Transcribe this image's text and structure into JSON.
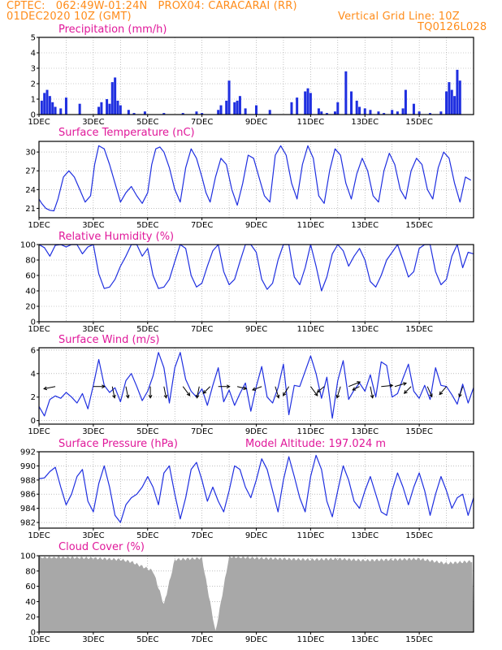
{
  "header": {
    "line1": "CPTEC:   062:49W-01:24N   PROX04: CARACARAI (RR)",
    "line2_left": "01DEC2020 10Z (GMT)",
    "line2_right": "Vertical Grid Line: 10Z",
    "line3_right": "TQ0126L028"
  },
  "colors": {
    "header": "#ff8c1a",
    "title": "#e0189a",
    "series": "#1f2fe0",
    "cloud": "#a8a8a8"
  },
  "x_ticks": [
    "1DEC",
    "3DEC",
    "5DEC",
    "7DEC",
    "9DEC",
    "11DEC",
    "13DEC",
    "15DEC"
  ],
  "chart_data": [
    {
      "type": "bar",
      "title": "Precipitation (mm/h)",
      "ylim": [
        0,
        5
      ],
      "yticks": [
        "0",
        "1",
        "2",
        "3",
        "4",
        "5"
      ],
      "x_days": [
        0.1,
        0.2,
        0.3,
        0.4,
        0.5,
        0.6,
        0.8,
        1.0,
        1.5,
        2.2,
        2.3,
        2.5,
        2.6,
        2.7,
        2.8,
        2.9,
        3.0,
        3.3,
        3.5,
        3.9,
        4.6,
        5.3,
        5.8,
        6.0,
        6.6,
        6.7,
        6.9,
        7.0,
        7.2,
        7.3,
        7.4,
        7.6,
        8.0,
        8.5,
        9.3,
        9.5,
        9.8,
        9.9,
        10.0,
        10.3,
        10.4,
        10.6,
        10.9,
        11.0,
        11.3,
        11.5,
        11.7,
        11.8,
        12.0,
        12.2,
        12.5,
        12.7,
        13.0,
        13.2,
        13.4,
        13.5,
        13.8,
        14.0,
        14.4,
        14.8,
        15.0,
        15.1,
        15.2,
        15.3,
        15.4,
        15.5
      ],
      "values": [
        0.9,
        1.4,
        1.6,
        1.2,
        0.8,
        0.5,
        0.4,
        1.1,
        0.7,
        0.5,
        0.8,
        1.0,
        0.7,
        2.1,
        2.4,
        0.9,
        0.6,
        0.3,
        0.1,
        0.2,
        0.1,
        0.1,
        0.2,
        0.1,
        0.3,
        0.6,
        0.9,
        2.2,
        0.8,
        0.9,
        1.2,
        0.4,
        0.6,
        0.3,
        0.8,
        1.1,
        1.5,
        1.7,
        1.4,
        0.4,
        0.2,
        0.1,
        0.2,
        0.8,
        2.8,
        1.5,
        0.9,
        0.5,
        0.4,
        0.3,
        0.2,
        0.1,
        0.3,
        0.2,
        0.4,
        1.6,
        0.7,
        0.2,
        0.1,
        0.2,
        1.5,
        2.1,
        1.6,
        1.2,
        2.9,
        2.2
      ]
    },
    {
      "type": "line",
      "title": "Surface Temperature (nC)",
      "ylim": [
        19.5,
        31.7
      ],
      "yticks": [
        "21",
        "24",
        "27",
        "30"
      ],
      "x_days": [
        0,
        0.1,
        0.25,
        0.4,
        0.55,
        0.7,
        0.9,
        1.1,
        1.3,
        1.5,
        1.7,
        1.9,
        2.05,
        2.2,
        2.4,
        2.6,
        2.8,
        3.0,
        3.2,
        3.4,
        3.6,
        3.8,
        4.0,
        4.15,
        4.3,
        4.45,
        4.6,
        4.8,
        5.0,
        5.2,
        5.4,
        5.6,
        5.8,
        6.0,
        6.15,
        6.3,
        6.5,
        6.7,
        6.9,
        7.1,
        7.3,
        7.5,
        7.7,
        7.9,
        8.1,
        8.3,
        8.5,
        8.7,
        8.9,
        9.1,
        9.3,
        9.5,
        9.7,
        9.9,
        10.1,
        10.3,
        10.5,
        10.7,
        10.9,
        11.1,
        11.3,
        11.5,
        11.7,
        11.9,
        12.1,
        12.3,
        12.5,
        12.7,
        12.9,
        13.1,
        13.3,
        13.5,
        13.7,
        13.9,
        14.1,
        14.3,
        14.5,
        14.7,
        14.9,
        15.1,
        15.3,
        15.5,
        15.7,
        15.9
      ],
      "values": [
        22.5,
        21.8,
        21.0,
        20.7,
        20.6,
        22.5,
        26.0,
        27.0,
        26.0,
        24.0,
        22.0,
        23.0,
        28.0,
        31.0,
        30.5,
        28.0,
        25.0,
        22.0,
        23.5,
        24.5,
        23.0,
        21.8,
        23.5,
        28.0,
        30.5,
        30.8,
        30.0,
        27.5,
        24.0,
        22.0,
        27.5,
        30.5,
        29.0,
        26.0,
        23.5,
        22.0,
        26.0,
        29.0,
        28.0,
        24.0,
        21.5,
        25.0,
        29.5,
        29.0,
        26.0,
        23.0,
        22.0,
        29.5,
        31.0,
        29.5,
        25.0,
        22.5,
        28.0,
        31.0,
        29.0,
        23.0,
        21.8,
        27.0,
        30.5,
        29.5,
        25.0,
        22.5,
        26.5,
        29.0,
        27.0,
        23.0,
        22.0,
        27.0,
        29.8,
        28.0,
        24.0,
        22.5,
        27.0,
        29.0,
        28.0,
        24.0,
        22.5,
        27.5,
        30.0,
        29.0,
        25.0,
        22.0,
        26.0,
        25.5
      ]
    },
    {
      "type": "line",
      "title": "Relative Humidity (%)",
      "ylim": [
        0,
        100
      ],
      "yticks": [
        "0",
        "20",
        "40",
        "60",
        "80",
        "100"
      ],
      "x_days": [
        0,
        0.2,
        0.4,
        0.6,
        0.8,
        1.0,
        1.2,
        1.4,
        1.6,
        1.8,
        2.0,
        2.2,
        2.4,
        2.6,
        2.8,
        3.0,
        3.2,
        3.4,
        3.6,
        3.8,
        4.0,
        4.2,
        4.4,
        4.6,
        4.8,
        5.0,
        5.2,
        5.4,
        5.6,
        5.8,
        6.0,
        6.2,
        6.4,
        6.6,
        6.8,
        7.0,
        7.2,
        7.4,
        7.6,
        7.8,
        8.0,
        8.2,
        8.4,
        8.6,
        8.8,
        9.0,
        9.2,
        9.4,
        9.6,
        9.8,
        10.0,
        10.2,
        10.4,
        10.6,
        10.8,
        11.0,
        11.2,
        11.4,
        11.6,
        11.8,
        12.0,
        12.2,
        12.4,
        12.6,
        12.8,
        13.0,
        13.2,
        13.4,
        13.6,
        13.8,
        14.0,
        14.2,
        14.4,
        14.6,
        14.8,
        15.0,
        15.2,
        15.4,
        15.6,
        15.8,
        16.0
      ],
      "values": [
        100,
        96,
        85,
        99,
        100,
        97,
        100,
        100,
        88,
        97,
        100,
        62,
        43,
        45,
        55,
        72,
        85,
        100,
        100,
        85,
        95,
        60,
        43,
        45,
        55,
        78,
        100,
        95,
        60,
        45,
        50,
        72,
        92,
        100,
        65,
        48,
        55,
        78,
        100,
        100,
        90,
        55,
        42,
        50,
        80,
        100,
        100,
        58,
        48,
        70,
        100,
        72,
        40,
        58,
        88,
        100,
        92,
        72,
        85,
        95,
        80,
        52,
        45,
        60,
        80,
        90,
        100,
        80,
        58,
        65,
        95,
        100,
        100,
        65,
        48,
        55,
        85,
        100,
        70,
        90,
        88
      ]
    },
    {
      "type": "line",
      "title": "Surface Wind (m/s)",
      "ylim": [
        -0.3,
        6.2
      ],
      "yticks": [
        "0",
        "2",
        "4",
        "6"
      ],
      "x_days": [
        0,
        0.2,
        0.4,
        0.6,
        0.8,
        1.0,
        1.2,
        1.4,
        1.6,
        1.8,
        2.0,
        2.2,
        2.4,
        2.6,
        2.8,
        3.0,
        3.2,
        3.4,
        3.6,
        3.8,
        4.0,
        4.2,
        4.4,
        4.6,
        4.8,
        5.0,
        5.2,
        5.4,
        5.6,
        5.8,
        6.0,
        6.2,
        6.4,
        6.6,
        6.8,
        7.0,
        7.2,
        7.4,
        7.6,
        7.8,
        8.0,
        8.2,
        8.4,
        8.6,
        8.8,
        9.0,
        9.2,
        9.4,
        9.6,
        9.8,
        10.0,
        10.2,
        10.4,
        10.6,
        10.8,
        11.0,
        11.2,
        11.4,
        11.6,
        11.8,
        12.0,
        12.2,
        12.4,
        12.6,
        12.8,
        13.0,
        13.2,
        13.4,
        13.6,
        13.8,
        14.0,
        14.2,
        14.4,
        14.6,
        14.8,
        15.0,
        15.2,
        15.4,
        15.6,
        15.8,
        16.0
      ],
      "values": [
        1.2,
        0.4,
        1.8,
        2.1,
        1.9,
        2.4,
        2.0,
        1.5,
        2.3,
        1.0,
        3.0,
        5.2,
        3.0,
        2.4,
        2.8,
        1.6,
        3.4,
        4.0,
        2.9,
        1.7,
        2.5,
        3.8,
        5.8,
        4.5,
        1.5,
        4.5,
        5.8,
        3.5,
        2.5,
        2.0,
        2.7,
        1.3,
        3.0,
        4.5,
        1.6,
        2.6,
        1.3,
        2.3,
        3.2,
        0.8,
        2.9,
        4.6,
        2.0,
        1.5,
        2.8,
        4.8,
        0.5,
        3.0,
        2.9,
        4.2,
        5.5,
        4.0,
        1.9,
        3.7,
        0.2,
        3.4,
        5.1,
        1.8,
        2.6,
        3.2,
        2.5,
        3.9,
        2.0,
        5.0,
        4.7,
        2.0,
        2.3,
        3.6,
        4.8,
        2.5,
        1.9,
        3.0,
        1.8,
        4.5,
        3.0,
        2.9,
        2.2,
        1.4,
        3.1,
        1.5,
        2.8
      ],
      "arrows": [
        {
          "day": 0.6,
          "u": -1,
          "v": -0.2
        },
        {
          "day": 2.0,
          "u": 1,
          "v": 0
        },
        {
          "day": 2.7,
          "u": 0.2,
          "v": -1
        },
        {
          "day": 3.2,
          "u": 0.2,
          "v": -1
        },
        {
          "day": 4.1,
          "u": 0,
          "v": -1
        },
        {
          "day": 4.6,
          "u": 0.2,
          "v": -1
        },
        {
          "day": 5.3,
          "u": 0.6,
          "v": -0.8
        },
        {
          "day": 5.9,
          "u": -0.2,
          "v": -1
        },
        {
          "day": 6.3,
          "u": -0.6,
          "v": -0.6
        },
        {
          "day": 6.6,
          "u": 1,
          "v": 0
        },
        {
          "day": 7.3,
          "u": 0.8,
          "v": -0.2
        },
        {
          "day": 8.2,
          "u": -0.8,
          "v": -0.3
        },
        {
          "day": 8.7,
          "u": 0.3,
          "v": -1
        },
        {
          "day": 9.2,
          "u": -0.5,
          "v": -0.8
        },
        {
          "day": 10.0,
          "u": 0.6,
          "v": -0.8
        },
        {
          "day": 10.5,
          "u": -0.6,
          "v": -0.5
        },
        {
          "day": 11.1,
          "u": -0.3,
          "v": -1
        },
        {
          "day": 11.4,
          "u": 1,
          "v": 0.4
        },
        {
          "day": 11.8,
          "u": -0.6,
          "v": -0.3
        },
        {
          "day": 12.2,
          "u": 0.2,
          "v": -1
        },
        {
          "day": 12.6,
          "u": 1,
          "v": 0.1
        },
        {
          "day": 13.1,
          "u": 1,
          "v": 0.3
        },
        {
          "day": 13.7,
          "u": -0.6,
          "v": -0.6
        },
        {
          "day": 14.3,
          "u": 0.4,
          "v": -0.9
        },
        {
          "day": 15.0,
          "u": -0.6,
          "v": -0.7
        },
        {
          "day": 15.6,
          "u": -0.3,
          "v": -0.9
        }
      ]
    },
    {
      "type": "line",
      "title": "Surface Pressure (hPa)",
      "subtitle": "Model Altitude: 197.024 m",
      "ylim": [
        981.2,
        992.0
      ],
      "yticks": [
        "982",
        "984",
        "986",
        "988",
        "990",
        "992"
      ],
      "x_days": [
        0,
        0.2,
        0.4,
        0.6,
        0.8,
        1.0,
        1.2,
        1.4,
        1.6,
        1.8,
        2.0,
        2.2,
        2.4,
        2.6,
        2.8,
        3.0,
        3.2,
        3.4,
        3.6,
        3.8,
        4.0,
        4.2,
        4.4,
        4.6,
        4.8,
        5.0,
        5.2,
        5.4,
        5.6,
        5.8,
        6.0,
        6.2,
        6.4,
        6.6,
        6.8,
        7.0,
        7.2,
        7.4,
        7.6,
        7.8,
        8.0,
        8.2,
        8.4,
        8.6,
        8.8,
        9.0,
        9.2,
        9.4,
        9.6,
        9.8,
        10.0,
        10.2,
        10.4,
        10.6,
        10.8,
        11.0,
        11.2,
        11.4,
        11.6,
        11.8,
        12.0,
        12.2,
        12.4,
        12.6,
        12.8,
        13.0,
        13.2,
        13.4,
        13.6,
        13.8,
        14.0,
        14.2,
        14.4,
        14.6,
        14.8,
        15.0,
        15.2,
        15.4,
        15.6,
        15.8,
        16.0
      ],
      "values": [
        988.2,
        988.3,
        989.2,
        989.8,
        987.0,
        984.5,
        986.0,
        988.5,
        989.5,
        985.0,
        983.5,
        987.5,
        990.0,
        987.0,
        983.0,
        982.0,
        984.5,
        985.5,
        986.0,
        987.0,
        988.5,
        987.0,
        984.5,
        989.0,
        990.0,
        986.0,
        982.5,
        985.5,
        989.5,
        990.5,
        988.0,
        985.0,
        987.0,
        985.0,
        983.5,
        986.5,
        990.0,
        989.5,
        987.0,
        985.5,
        988.0,
        991.0,
        989.5,
        986.5,
        983.5,
        988.0,
        991.3,
        988.5,
        985.5,
        983.5,
        988.5,
        991.5,
        989.5,
        985.0,
        982.8,
        986.5,
        990.0,
        988.0,
        985.0,
        984.0,
        986.5,
        988.5,
        986.0,
        983.5,
        983.0,
        986.5,
        989.0,
        987.0,
        984.5,
        987.0,
        989.0,
        986.5,
        983.0,
        986.0,
        988.5,
        986.5,
        984.0,
        985.5,
        986.0,
        983.0,
        985.5
      ]
    },
    {
      "type": "bar",
      "title": "Cloud Cover (%)",
      "ylim": [
        0,
        100
      ],
      "yticks": [
        "0",
        "20",
        "40",
        "60",
        "80",
        "100"
      ],
      "x_days": [
        0,
        1,
        2,
        3,
        3.4,
        4.2,
        4.6,
        5,
        6,
        6.5,
        7,
        8,
        9,
        10,
        11,
        12,
        13,
        14,
        15,
        16
      ],
      "values": [
        98,
        98,
        97,
        95,
        92,
        80,
        36,
        95,
        97,
        0,
        99,
        97,
        96,
        95,
        96,
        94,
        95,
        96,
        90,
        93
      ]
    }
  ]
}
